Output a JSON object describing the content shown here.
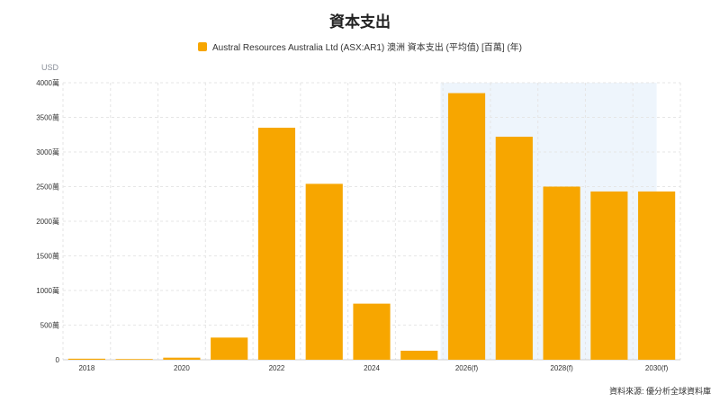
{
  "title": "資本支出",
  "legend_label": "Austral Resources Australia Ltd (ASX:AR1) 澳洲 資本支出 (平均值) [百萬] (年)",
  "unit_label": "USD",
  "source": "資料來源: 優分析全球資料庫",
  "colors": {
    "bar": "#F7A600",
    "forecast_shade": "#EEF5FC",
    "grid": "#E6E6E6",
    "axis_text": "#333333"
  },
  "chart_data": {
    "type": "bar",
    "title": "資本支出",
    "categories": [
      "2018",
      "2019",
      "2020",
      "2021",
      "2022",
      "2023",
      "2024",
      "2025",
      "2026(f)",
      "2027(f)",
      "2028(f)",
      "2029(f)",
      "2030(f)"
    ],
    "tick_labels": [
      "2018",
      "",
      "2020",
      "",
      "2022",
      "",
      "2024",
      "",
      "2026(f)",
      "",
      "2028(f)",
      "",
      "2030(f)"
    ],
    "series": [
      {
        "name": "Austral Resources Australia Ltd (ASX:AR1) 澳洲 資本支出 (平均值) [百萬] (年)",
        "values": [
          15,
          10,
          30,
          320,
          3350,
          2540,
          810,
          130,
          3850,
          3220,
          2500,
          2430,
          2430
        ]
      }
    ],
    "ylim": [
      0,
      4000
    ],
    "yticks": [
      0,
      500,
      1000,
      1500,
      2000,
      2500,
      3000,
      3500,
      4000
    ],
    "ytick_labels": [
      "0",
      "500萬",
      "1000萬",
      "1500萬",
      "2000萬",
      "2500萬",
      "3000萬",
      "3500萬",
      "4000萬"
    ],
    "forecast_start_index": 8,
    "grid": true,
    "legend_position": "top-center"
  }
}
